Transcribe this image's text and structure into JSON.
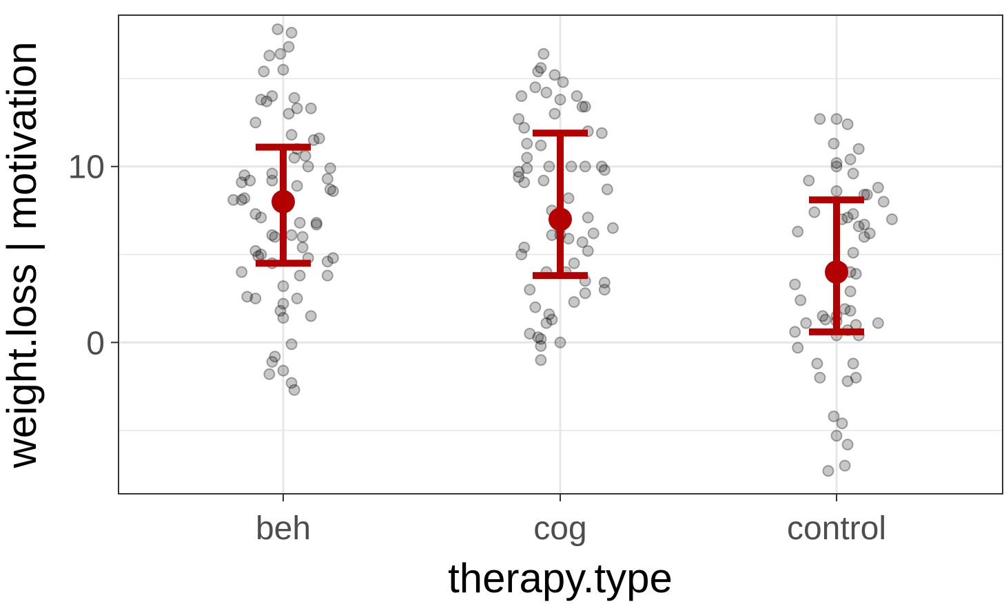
{
  "chart_data": {
    "type": "scatter",
    "xlabel": "therapy.type",
    "ylabel": "weight.loss | motivation",
    "categories": [
      "beh",
      "cog",
      "control"
    ],
    "ylim": [
      -8.6,
      18.6
    ],
    "y_ticks": [
      0,
      10
    ],
    "grid": true,
    "summary": [
      {
        "category": "beh",
        "mean": 8.0,
        "lower": 4.5,
        "upper": 11.1
      },
      {
        "category": "cog",
        "mean": 7.0,
        "lower": 3.8,
        "upper": 11.9
      },
      {
        "category": "control",
        "mean": 4.0,
        "lower": 0.6,
        "upper": 8.1
      }
    ],
    "points": {
      "beh": [
        [
          -0.02,
          17.8
        ],
        [
          0.03,
          17.6
        ],
        [
          -0.01,
          16.4
        ],
        [
          0.02,
          16.8
        ],
        [
          -0.05,
          16.3
        ],
        [
          -0.07,
          15.4
        ],
        [
          0.0,
          15.5
        ],
        [
          -0.04,
          14.0
        ],
        [
          0.04,
          13.9
        ],
        [
          -0.08,
          13.8
        ],
        [
          -0.06,
          13.7
        ],
        [
          0.05,
          13.3
        ],
        [
          0.1,
          13.3
        ],
        [
          0.02,
          13.0
        ],
        [
          -0.1,
          12.5
        ],
        [
          0.03,
          11.8
        ],
        [
          0.13,
          11.6
        ],
        [
          0.11,
          11.5
        ],
        [
          0.05,
          11.0
        ],
        [
          0.08,
          10.6
        ],
        [
          0.04,
          10.5
        ],
        [
          0.09,
          10.0
        ],
        [
          0.17,
          9.9
        ],
        [
          -0.04,
          9.6
        ],
        [
          -0.14,
          9.5
        ],
        [
          0.16,
          9.3
        ],
        [
          -0.12,
          9.2
        ],
        [
          -0.15,
          9.1
        ],
        [
          -0.04,
          9.2
        ],
        [
          0.05,
          8.9
        ],
        [
          0.17,
          8.7
        ],
        [
          0.18,
          8.6
        ],
        [
          -0.14,
          8.2
        ],
        [
          -0.15,
          8.1
        ],
        [
          -0.18,
          8.1
        ],
        [
          -0.1,
          7.3
        ],
        [
          -0.08,
          7.1
        ],
        [
          0.06,
          6.8
        ],
        [
          0.12,
          6.8
        ],
        [
          0.12,
          6.7
        ],
        [
          -0.04,
          6.1
        ],
        [
          0.03,
          6.1
        ],
        [
          -0.03,
          6.0
        ],
        [
          0.07,
          6.0
        ],
        [
          0.07,
          5.4
        ],
        [
          -0.1,
          5.2
        ],
        [
          -0.08,
          5.0
        ],
        [
          -0.09,
          4.9
        ],
        [
          0.09,
          4.8
        ],
        [
          0.18,
          4.8
        ],
        [
          0.16,
          4.6
        ],
        [
          -0.04,
          4.5
        ],
        [
          0.06,
          3.8
        ],
        [
          -0.15,
          4.0
        ],
        [
          0.16,
          3.8
        ],
        [
          0.0,
          3.2
        ],
        [
          -0.13,
          2.6
        ],
        [
          -0.1,
          2.5
        ],
        [
          0.05,
          2.5
        ],
        [
          0.0,
          2.2
        ],
        [
          -0.01,
          1.8
        ],
        [
          0.0,
          1.4
        ],
        [
          0.1,
          1.5
        ],
        [
          0.03,
          -0.1
        ],
        [
          -0.03,
          -0.8
        ],
        [
          -0.04,
          -1.1
        ],
        [
          0.0,
          -1.6
        ],
        [
          -0.05,
          -1.8
        ],
        [
          0.03,
          -2.3
        ],
        [
          0.04,
          -2.7
        ]
      ],
      "cog": [
        [
          -0.06,
          16.4
        ],
        [
          -0.07,
          15.6
        ],
        [
          -0.08,
          15.4
        ],
        [
          -0.02,
          15.2
        ],
        [
          0.01,
          14.8
        ],
        [
          -0.09,
          14.5
        ],
        [
          -0.05,
          14.2
        ],
        [
          0.06,
          14.0
        ],
        [
          -0.14,
          14.0
        ],
        [
          0.0,
          13.8
        ],
        [
          0.09,
          13.4
        ],
        [
          0.08,
          13.4
        ],
        [
          -0.02,
          13.0
        ],
        [
          -0.15,
          12.7
        ],
        [
          -0.13,
          12.2
        ],
        [
          0.1,
          12.0
        ],
        [
          0.15,
          11.9
        ],
        [
          -0.12,
          11.3
        ],
        [
          -0.07,
          11.2
        ],
        [
          -0.12,
          10.5
        ],
        [
          -0.04,
          10.0
        ],
        [
          0.15,
          10.0
        ],
        [
          0.04,
          10.0
        ],
        [
          0.09,
          10.0
        ],
        [
          0.16,
          9.8
        ],
        [
          -0.12,
          9.9
        ],
        [
          -0.15,
          9.7
        ],
        [
          -0.15,
          9.4
        ],
        [
          -0.13,
          9.1
        ],
        [
          -0.06,
          9.2
        ],
        [
          0.17,
          8.7
        ],
        [
          0.03,
          8.2
        ],
        [
          -0.03,
          7.5
        ],
        [
          0.1,
          7.1
        ],
        [
          0.0,
          6.5
        ],
        [
          0.19,
          6.5
        ],
        [
          0.12,
          6.2
        ],
        [
          -0.03,
          6.1
        ],
        [
          0.0,
          6.1
        ],
        [
          0.03,
          5.9
        ],
        [
          0.08,
          5.7
        ],
        [
          0.1,
          5.2
        ],
        [
          -0.13,
          5.4
        ],
        [
          -0.14,
          5.0
        ],
        [
          0.05,
          4.5
        ],
        [
          -0.05,
          4.0
        ],
        [
          0.02,
          4.0
        ],
        [
          0.09,
          3.5
        ],
        [
          0.16,
          3.4
        ],
        [
          0.16,
          3.0
        ],
        [
          0.09,
          2.8
        ],
        [
          -0.11,
          3.0
        ],
        [
          0.05,
          2.3
        ],
        [
          -0.09,
          2.0
        ],
        [
          -0.04,
          1.6
        ],
        [
          -0.03,
          1.3
        ],
        [
          -0.05,
          1.1
        ],
        [
          -0.11,
          0.5
        ],
        [
          -0.08,
          0.3
        ],
        [
          -0.07,
          0.2
        ],
        [
          0.0,
          0.0
        ],
        [
          -0.07,
          -0.2
        ],
        [
          -0.07,
          -1.0
        ]
      ],
      "control": [
        [
          -0.06,
          12.7
        ],
        [
          0.0,
          12.7
        ],
        [
          0.04,
          12.4
        ],
        [
          -0.01,
          11.3
        ],
        [
          0.08,
          11.0
        ],
        [
          0.05,
          10.4
        ],
        [
          0.0,
          10.2
        ],
        [
          0.0,
          10.0
        ],
        [
          0.06,
          9.6
        ],
        [
          -0.1,
          9.2
        ],
        [
          0.15,
          8.8
        ],
        [
          0.11,
          8.4
        ],
        [
          0.1,
          8.4
        ],
        [
          0.17,
          8.0
        ],
        [
          0.0,
          8.6
        ],
        [
          -0.08,
          7.4
        ],
        [
          0.06,
          7.3
        ],
        [
          0.02,
          7.0
        ],
        [
          0.04,
          7.1
        ],
        [
          0.2,
          7.0
        ],
        [
          0.1,
          6.7
        ],
        [
          0.08,
          6.6
        ],
        [
          0.12,
          6.2
        ],
        [
          -0.14,
          6.3
        ],
        [
          0.1,
          6.0
        ],
        [
          0.06,
          5.1
        ],
        [
          0.02,
          4.2
        ],
        [
          0.05,
          4.0
        ],
        [
          0.07,
          3.9
        ],
        [
          -0.15,
          3.3
        ],
        [
          0.05,
          2.9
        ],
        [
          -0.13,
          2.4
        ],
        [
          0.03,
          1.9
        ],
        [
          0.05,
          1.8
        ],
        [
          -0.05,
          1.5
        ],
        [
          0.0,
          1.5
        ],
        [
          -0.04,
          1.3
        ],
        [
          -0.11,
          1.1
        ],
        [
          0.0,
          1.2
        ],
        [
          0.07,
          1.0
        ],
        [
          0.15,
          1.1
        ],
        [
          0.04,
          0.7
        ],
        [
          -0.15,
          0.6
        ],
        [
          0.0,
          0.4
        ],
        [
          0.08,
          0.4
        ],
        [
          -0.14,
          -0.3
        ],
        [
          -0.07,
          -1.2
        ],
        [
          0.06,
          -1.2
        ],
        [
          -0.06,
          -2.0
        ],
        [
          0.07,
          -2.0
        ],
        [
          0.04,
          -2.2
        ],
        [
          -0.01,
          -4.2
        ],
        [
          0.02,
          -4.6
        ],
        [
          0.0,
          -5.3
        ],
        [
          0.04,
          -5.8
        ],
        [
          -0.03,
          -7.3
        ],
        [
          0.03,
          -7.0
        ]
      ]
    },
    "colors": {
      "point_fill": "#000000",
      "summary": "#b30000",
      "grid": "#e6e6e6",
      "border": "#333333"
    }
  }
}
